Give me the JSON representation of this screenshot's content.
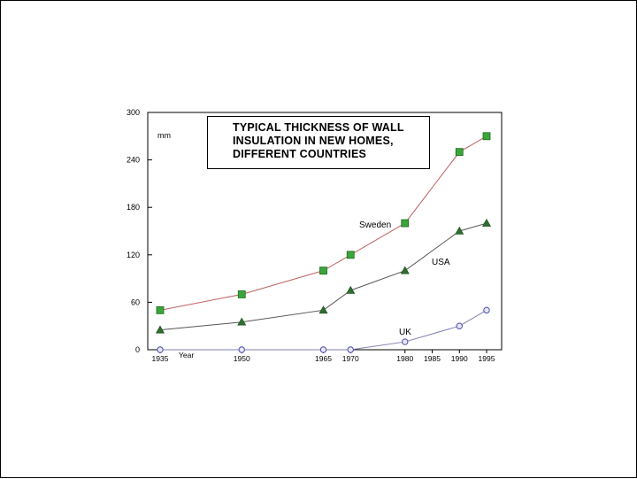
{
  "chart_data": {
    "type": "line",
    "title_lines": [
      "TYPICAL THICKNESS OF WALL",
      "INSULATION IN NEW HOMES,",
      "DIFFERENT COUNTRIES"
    ],
    "unit_label": "mm",
    "xlabel": "Year",
    "ylim": [
      0,
      300
    ],
    "yticks": [
      0,
      60,
      120,
      180,
      240,
      300
    ],
    "xlim": [
      1935,
      1995
    ],
    "xticks": [
      1935,
      1950,
      1965,
      1970,
      1980,
      1985,
      1990,
      1995
    ],
    "series": [
      {
        "name": "Sweden",
        "color": "#c06060",
        "marker": "square",
        "marker_color": "#3aa63a",
        "x": [
          1935,
          1950,
          1965,
          1970,
          1980,
          1990,
          1995
        ],
        "y": [
          50,
          70,
          100,
          120,
          160,
          250,
          270
        ]
      },
      {
        "name": "USA",
        "color": "#555555",
        "marker": "triangle",
        "marker_color": "#2e6e2e",
        "x": [
          1935,
          1950,
          1965,
          1970,
          1980,
          1990,
          1995
        ],
        "y": [
          25,
          35,
          50,
          75,
          100,
          150,
          160
        ]
      },
      {
        "name": "UK",
        "color": "#8080b0",
        "marker": "circle",
        "marker_color": "#4a4ab0",
        "x": [
          1935,
          1950,
          1965,
          1970,
          1980,
          1990,
          1995
        ],
        "y": [
          0,
          0,
          0,
          0,
          10,
          30,
          50
        ]
      }
    ],
    "grid": false
  }
}
